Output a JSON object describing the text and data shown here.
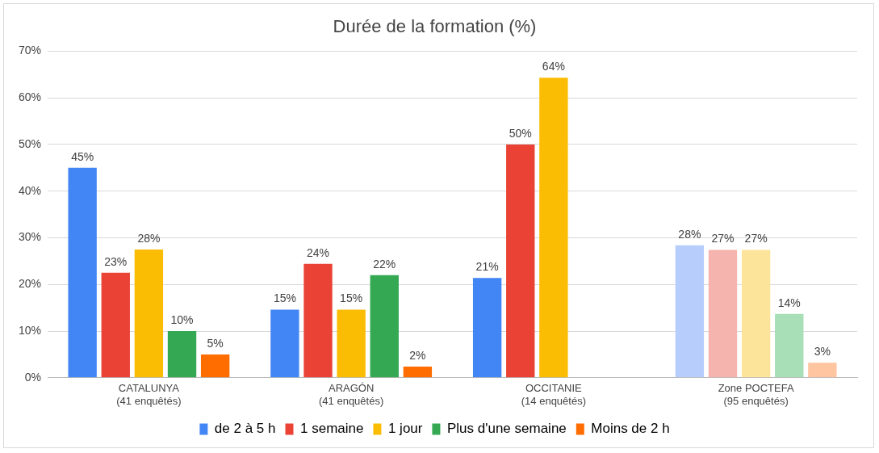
{
  "chart_data": {
    "type": "bar",
    "title": "Durée de la formation (%)",
    "categories": [
      "CATALUNYA\n(41 enquêtés)",
      "ARAGÓN\n(41 enquêtés)",
      "OCCITANIE\n(14 enquêtés)",
      "Zone POCTEFA\n(95 enquêtés)"
    ],
    "series": [
      {
        "name": "de 2 à 5 h",
        "color": "#4285f4",
        "colors": [
          "#4285f4",
          "#4285f4",
          "#4285f4",
          "#b7cdfb"
        ],
        "values": [
          45,
          14.6,
          21.4,
          28.4
        ],
        "value_labels": [
          "45%",
          "15%",
          "21%",
          "28%"
        ]
      },
      {
        "name": "1 semaine",
        "color": "#ea4335",
        "colors": [
          "#ea4335",
          "#ea4335",
          "#ea4335",
          "#f6b4ae"
        ],
        "values": [
          22.5,
          24.4,
          50,
          27.4
        ],
        "value_labels": [
          "23%",
          "24%",
          "50%",
          "27%"
        ]
      },
      {
        "name": "1 jour",
        "color": "#fbbc04",
        "colors": [
          "#fbbc04",
          "#fbbc04",
          "#fbbc04",
          "#fde49b"
        ],
        "values": [
          27.5,
          14.6,
          64.3,
          27.4
        ],
        "value_labels": [
          "28%",
          "15%",
          "64%",
          "27%"
        ]
      },
      {
        "name": "Plus d'une semaine",
        "color": "#34a853",
        "colors": [
          "#34a853",
          "#34a853",
          "#34a853",
          "#a8dfb7"
        ],
        "values": [
          10,
          22,
          null,
          13.7
        ],
        "value_labels": [
          "10%",
          "22%",
          null,
          "14%"
        ]
      },
      {
        "name": "Moins de 2 h",
        "color": "#ff6d01",
        "colors": [
          "#ff6d01",
          "#ff6d01",
          "#ff6d01",
          "#ffc4a0"
        ],
        "values": [
          5,
          2.4,
          null,
          3.2
        ],
        "value_labels": [
          "5%",
          "2%",
          null,
          "3%"
        ]
      }
    ],
    "ylim": [
      0,
      70
    ],
    "yticks": [
      {
        "value": 0,
        "label": "0%"
      },
      {
        "value": 10,
        "label": "10%"
      },
      {
        "value": 20,
        "label": "20%"
      },
      {
        "value": 30,
        "label": "30%"
      },
      {
        "value": 40,
        "label": "40%"
      },
      {
        "value": 50,
        "label": "50%"
      },
      {
        "value": 60,
        "label": "60%"
      },
      {
        "value": 70,
        "label": "70%"
      }
    ],
    "grid": "y",
    "legend": "bottom"
  }
}
